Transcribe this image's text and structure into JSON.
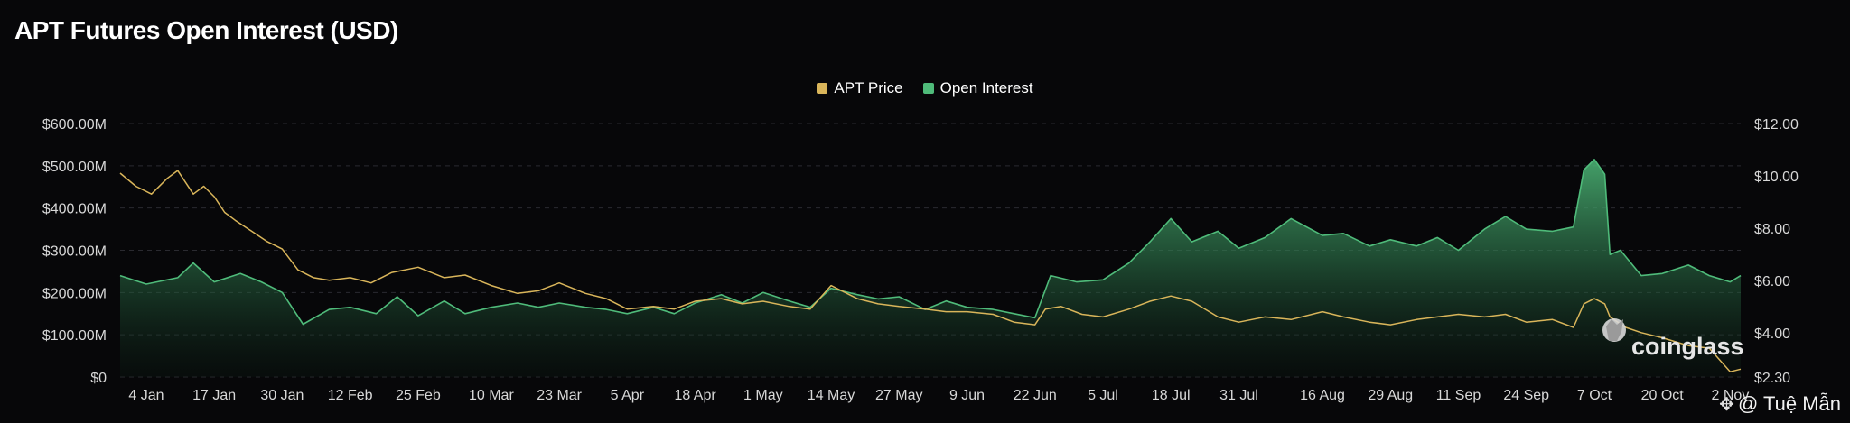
{
  "title": "APT Futures Open Interest (USD)",
  "legend": [
    {
      "label": "APT Price",
      "color": "#d9b55a"
    },
    {
      "label": "Open Interest",
      "color": "#4fbb7a"
    }
  ],
  "watermark": "coinglass",
  "credit": {
    "icon": "handshake-icon",
    "text": "@ Tuệ Mẫn"
  },
  "chart_data": {
    "type": "area",
    "title": "APT Futures Open Interest (USD)",
    "x_tick_labels": [
      "4 Jan",
      "17 Jan",
      "30 Jan",
      "12 Feb",
      "25 Feb",
      "10 Mar",
      "23 Mar",
      "5 Apr",
      "18 Apr",
      "1 May",
      "14 May",
      "27 May",
      "9 Jun",
      "22 Jun",
      "5 Jul",
      "18 Jul",
      "31 Jul",
      "16 Aug",
      "29 Aug",
      "11 Sep",
      "24 Sep",
      "7 Oct",
      "20 Oct",
      "2 Nov"
    ],
    "y_left": {
      "ticks": [
        0,
        100,
        200,
        300,
        400,
        500,
        600
      ],
      "tick_labels": [
        "$0",
        "$100.00M",
        "$200.00M",
        "$300.00M",
        "$400.00M",
        "$500.00M",
        "$600.00M"
      ],
      "range": [
        0,
        600
      ],
      "unit": "USD millions"
    },
    "y_right": {
      "ticks": [
        2.3,
        4,
        6,
        8,
        10,
        12
      ],
      "tick_labels": [
        "$2.30",
        "$4.00",
        "$6.00",
        "$8.00",
        "$10.00",
        "$12.00"
      ],
      "range": [
        2.3,
        12
      ],
      "unit": "USD"
    },
    "grid": true,
    "legend_position": "top-center",
    "series": [
      {
        "name": "Open Interest",
        "axis": "left",
        "color": "#4fbb7a",
        "x": [
          "30 Dec",
          "4 Jan",
          "10 Jan",
          "13 Jan",
          "17 Jan",
          "22 Jan",
          "26 Jan",
          "30 Jan",
          "3 Feb",
          "8 Feb",
          "12 Feb",
          "17 Feb",
          "21 Feb",
          "25 Feb",
          "1 Mar",
          "5 Mar",
          "10 Mar",
          "15 Mar",
          "19 Mar",
          "23 Mar",
          "28 Mar",
          "1 Apr",
          "5 Apr",
          "10 Apr",
          "14 Apr",
          "18 Apr",
          "23 Apr",
          "27 Apr",
          "1 May",
          "6 May",
          "10 May",
          "14 May",
          "19 May",
          "23 May",
          "27 May",
          "1 Jun",
          "5 Jun",
          "9 Jun",
          "14 Jun",
          "18 Jun",
          "22 Jun",
          "25 Jun",
          "30 Jun",
          "5 Jul",
          "10 Jul",
          "14 Jul",
          "18 Jul",
          "22 Jul",
          "27 Jul",
          "31 Jul",
          "5 Aug",
          "10 Aug",
          "16 Aug",
          "20 Aug",
          "25 Aug",
          "29 Aug",
          "3 Sep",
          "7 Sep",
          "11 Sep",
          "16 Sep",
          "20 Sep",
          "24 Sep",
          "29 Sep",
          "3 Oct",
          "5 Oct",
          "7 Oct",
          "9 Oct",
          "10 Oct",
          "12 Oct",
          "16 Oct",
          "20 Oct",
          "25 Oct",
          "29 Oct",
          "2 Nov",
          "4 Nov"
        ],
        "values": [
          240,
          220,
          235,
          270,
          225,
          245,
          225,
          200,
          125,
          160,
          165,
          150,
          190,
          145,
          180,
          150,
          165,
          175,
          165,
          175,
          165,
          160,
          150,
          165,
          150,
          175,
          195,
          175,
          200,
          180,
          165,
          210,
          195,
          185,
          190,
          160,
          180,
          165,
          160,
          150,
          140,
          240,
          225,
          230,
          270,
          320,
          375,
          320,
          345,
          305,
          330,
          375,
          335,
          340,
          310,
          325,
          310,
          330,
          300,
          350,
          380,
          350,
          345,
          355,
          490,
          515,
          480,
          290,
          300,
          240,
          245,
          265,
          240,
          225,
          240
        ]
      },
      {
        "name": "APT Price",
        "axis": "right",
        "color": "#d9b55a",
        "x": [
          "30 Dec",
          "2 Jan",
          "5 Jan",
          "8 Jan",
          "10 Jan",
          "13 Jan",
          "15 Jan",
          "17 Jan",
          "19 Jan",
          "21 Jan",
          "24 Jan",
          "27 Jan",
          "30 Jan",
          "2 Feb",
          "5 Feb",
          "8 Feb",
          "12 Feb",
          "16 Feb",
          "20 Feb",
          "25 Feb",
          "1 Mar",
          "5 Mar",
          "10 Mar",
          "15 Mar",
          "19 Mar",
          "23 Mar",
          "28 Mar",
          "1 Apr",
          "5 Apr",
          "10 Apr",
          "14 Apr",
          "18 Apr",
          "23 Apr",
          "27 Apr",
          "1 May",
          "6 May",
          "10 May",
          "14 May",
          "19 May",
          "23 May",
          "27 May",
          "1 Jun",
          "5 Jun",
          "9 Jun",
          "14 Jun",
          "18 Jun",
          "22 Jun",
          "24 Jun",
          "27 Jun",
          "1 Jul",
          "5 Jul",
          "10 Jul",
          "14 Jul",
          "18 Jul",
          "22 Jul",
          "27 Jul",
          "31 Jul",
          "5 Aug",
          "10 Aug",
          "16 Aug",
          "20 Aug",
          "25 Aug",
          "29 Aug",
          "3 Sep",
          "7 Sep",
          "11 Sep",
          "16 Sep",
          "20 Sep",
          "24 Sep",
          "29 Sep",
          "3 Oct",
          "5 Oct",
          "7 Oct",
          "9 Oct",
          "10 Oct",
          "13 Oct",
          "16 Oct",
          "20 Oct",
          "25 Oct",
          "29 Oct",
          "2 Nov",
          "4 Nov"
        ],
        "values": [
          10.1,
          9.6,
          9.3,
          9.9,
          10.2,
          9.3,
          9.6,
          9.2,
          8.6,
          8.3,
          7.9,
          7.5,
          7.2,
          6.4,
          6.1,
          6.0,
          6.1,
          5.9,
          6.3,
          6.5,
          6.1,
          6.2,
          5.8,
          5.5,
          5.6,
          5.9,
          5.5,
          5.3,
          4.9,
          5.0,
          4.9,
          5.2,
          5.3,
          5.1,
          5.2,
          5.0,
          4.9,
          5.8,
          5.3,
          5.1,
          5.0,
          4.9,
          4.8,
          4.8,
          4.7,
          4.4,
          4.3,
          4.9,
          5.0,
          4.7,
          4.6,
          4.9,
          5.2,
          5.4,
          5.2,
          4.6,
          4.4,
          4.6,
          4.5,
          4.8,
          4.6,
          4.4,
          4.3,
          4.5,
          4.6,
          4.7,
          4.6,
          4.7,
          4.4,
          4.5,
          4.2,
          5.1,
          5.3,
          5.1,
          4.6,
          4.2,
          4.0,
          3.8,
          3.5,
          3.4,
          2.5,
          2.6
        ]
      }
    ]
  }
}
